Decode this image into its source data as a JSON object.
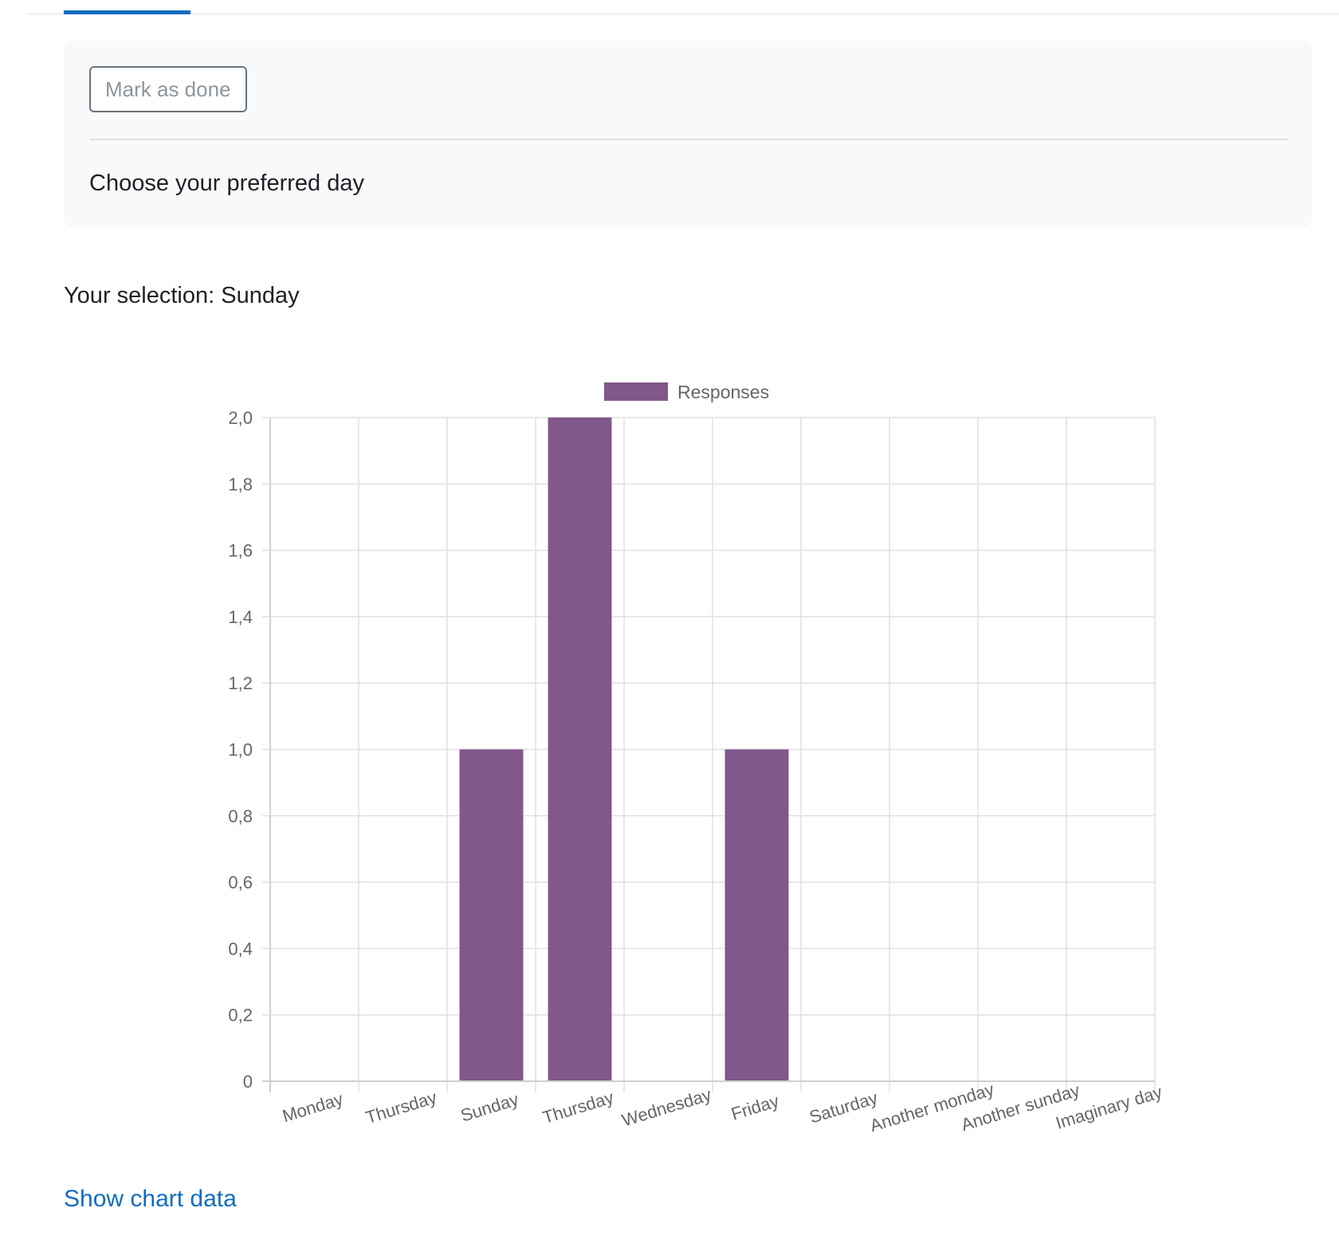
{
  "tabs": {
    "active_color": "#0f6cbf"
  },
  "activity": {
    "mark_done_label": "Mark as done",
    "question": "Choose your preferred day"
  },
  "result": {
    "selection_label": "Your selection:",
    "selection_value": "Sunday"
  },
  "chart_data": {
    "type": "bar",
    "categories": [
      "Monday",
      "Thursday",
      "Sunday",
      "Thursday",
      "Wednesday",
      "Friday",
      "Saturday",
      "Another monday",
      "Another sunday",
      "Imaginary day"
    ],
    "series": [
      {
        "name": "Responses",
        "values": [
          0,
          0,
          1,
          2,
          0,
          1,
          0,
          0,
          0,
          0
        ],
        "color": "#81588b"
      }
    ],
    "ylim": [
      0,
      2
    ],
    "yticks": [
      "0",
      "0,2",
      "0,4",
      "0,6",
      "0,8",
      "1,0",
      "1,2",
      "1,4",
      "1,6",
      "1,8",
      "2,0"
    ],
    "legend_position": "top",
    "grid": true,
    "title": "",
    "xlabel": "",
    "ylabel": ""
  },
  "links": {
    "show_chart_data": "Show chart data"
  }
}
